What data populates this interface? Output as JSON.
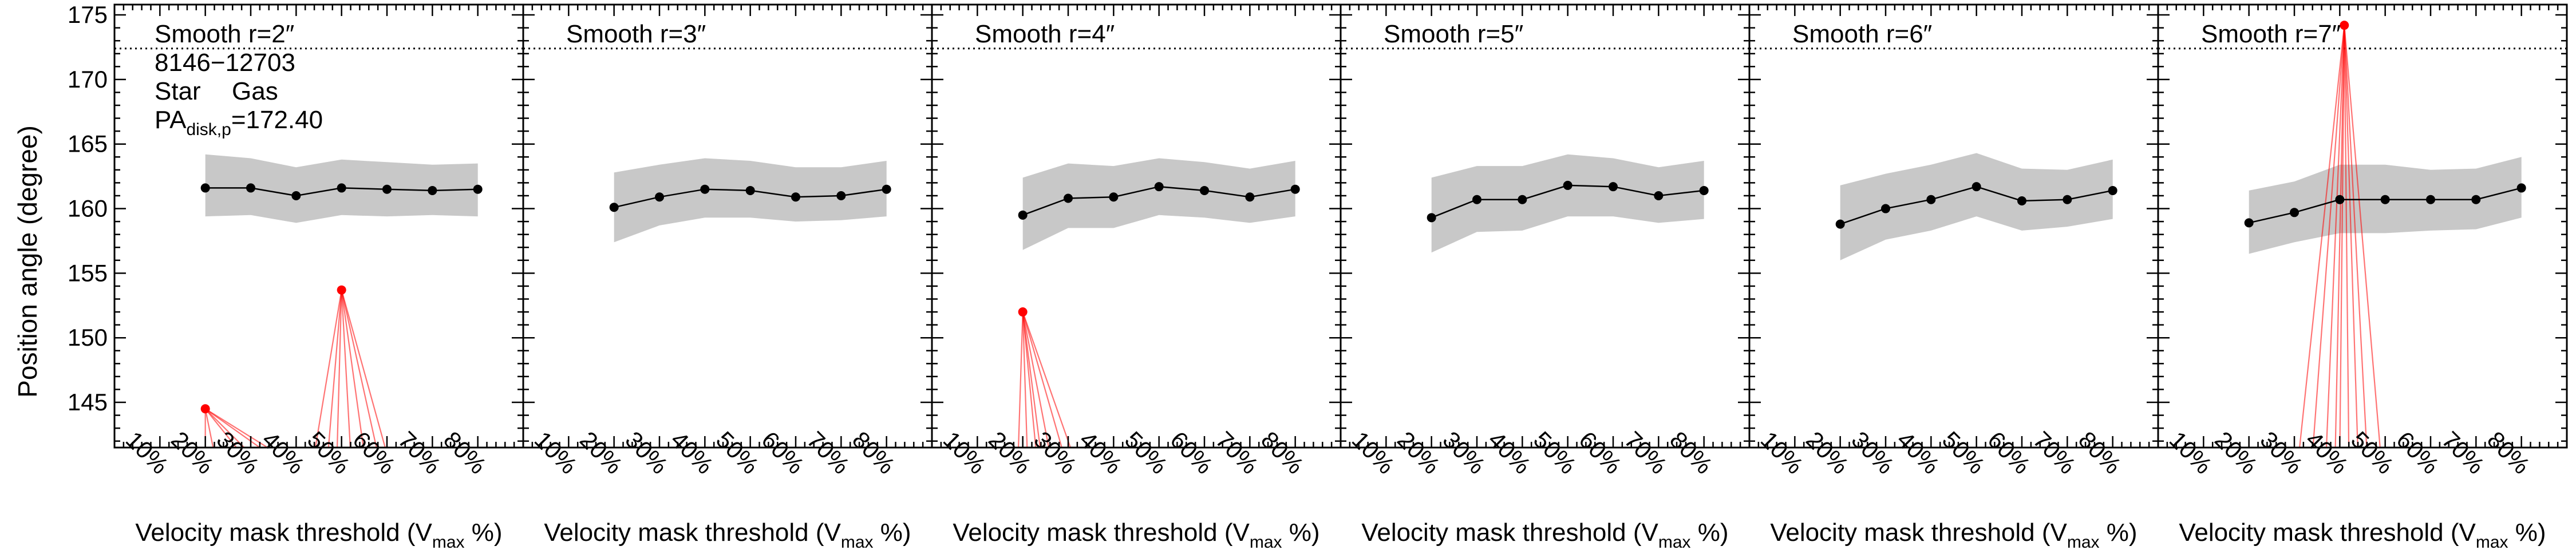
{
  "figure": {
    "ylabel": "Position angle (degree)",
    "xlabel_main": "Velocity mask threshold (V",
    "xlabel_sub": "max",
    "xlabel_tail": " %)",
    "xtick_labels": [
      "10%",
      "20%",
      "30%",
      "40%",
      "50%",
      "60%",
      "70%",
      "80%"
    ],
    "ytick_labels": [
      "145",
      "150",
      "155",
      "160",
      "165",
      "170",
      "175"
    ],
    "annotation": {
      "plate_ifu": "8146−12703",
      "star_label": "Star",
      "gas_label": "Gas",
      "pa_prefix": "PA",
      "pa_sub": "disk,p",
      "pa_value": "=172.40"
    },
    "colors": {
      "star": "#000000",
      "gas": "#ff0000",
      "band": "#c8c8c8",
      "reference_line": "#000000"
    }
  },
  "chart_data": [
    {
      "type": "line",
      "title": "Smooth r=2″",
      "x": [
        20,
        30,
        40,
        50,
        60,
        70,
        80
      ],
      "xlim": [
        0,
        90
      ],
      "ylim": [
        141.5,
        175.8
      ],
      "reference_line": 172.4,
      "series": [
        {
          "name": "Star",
          "values": [
            161.6,
            161.6,
            161.0,
            161.6,
            161.5,
            161.4,
            161.5
          ],
          "band_upper": [
            164.2,
            163.9,
            163.2,
            163.8,
            163.6,
            163.4,
            163.5
          ],
          "band_lower": [
            159.4,
            159.5,
            158.9,
            159.5,
            159.4,
            159.5,
            159.4
          ]
        },
        {
          "name": "Gas",
          "x": [
            20,
            50
          ],
          "values": [
            144.5,
            153.7
          ],
          "fan_ends": [
            [
              [
                20,
                141.0
              ],
              [
                22,
                141.0
              ],
              [
                28,
                141.0
              ],
              [
                30,
                141.0
              ],
              [
                34,
                141.0
              ],
              [
                36,
                141.0
              ]
            ],
            [
              [
                44,
                141.0
              ],
              [
                47,
                141.0
              ],
              [
                49,
                141.0
              ],
              [
                52,
                141.0
              ],
              [
                55,
                141.0
              ],
              [
                58,
                141.0
              ],
              [
                60,
                141.0
              ]
            ]
          ]
        }
      ]
    },
    {
      "type": "line",
      "title": "Smooth r=3″",
      "x": [
        20,
        30,
        40,
        50,
        60,
        70,
        80
      ],
      "xlim": [
        0,
        90
      ],
      "ylim": [
        141.5,
        175.8
      ],
      "reference_line": 172.4,
      "series": [
        {
          "name": "Star",
          "values": [
            160.1,
            160.9,
            161.5,
            161.4,
            160.9,
            161.0,
            161.5
          ],
          "band_upper": [
            162.8,
            163.4,
            163.9,
            163.7,
            163.2,
            163.2,
            163.7
          ],
          "band_lower": [
            157.4,
            158.7,
            159.3,
            159.3,
            159.0,
            159.1,
            159.4
          ]
        }
      ]
    },
    {
      "type": "line",
      "title": "Smooth r=4″",
      "x": [
        20,
        30,
        40,
        50,
        60,
        70,
        80
      ],
      "xlim": [
        0,
        90
      ],
      "ylim": [
        141.5,
        175.8
      ],
      "reference_line": 172.4,
      "series": [
        {
          "name": "Star",
          "values": [
            159.5,
            160.8,
            160.9,
            161.7,
            161.4,
            160.9,
            161.5
          ],
          "band_upper": [
            162.4,
            163.5,
            163.3,
            163.9,
            163.6,
            163.1,
            163.7
          ],
          "band_lower": [
            156.8,
            158.5,
            158.5,
            159.5,
            159.3,
            158.9,
            159.4
          ]
        },
        {
          "name": "Gas",
          "x": [
            20
          ],
          "values": [
            152.0
          ],
          "fan_ends": [
            [
              [
                19,
                141.0
              ],
              [
                21,
                141.0
              ],
              [
                23,
                141.0
              ],
              [
                24,
                141.0
              ],
              [
                26,
                141.0
              ],
              [
                29,
                141.0
              ],
              [
                31,
                141.0
              ]
            ]
          ]
        }
      ]
    },
    {
      "type": "line",
      "title": "Smooth r=5″",
      "x": [
        20,
        30,
        40,
        50,
        60,
        70,
        80
      ],
      "xlim": [
        0,
        90
      ],
      "ylim": [
        141.5,
        175.8
      ],
      "reference_line": 172.4,
      "series": [
        {
          "name": "Star",
          "values": [
            159.3,
            160.7,
            160.7,
            161.8,
            161.7,
            161.0,
            161.4
          ],
          "band_upper": [
            162.4,
            163.3,
            163.3,
            164.2,
            163.9,
            163.2,
            163.7
          ],
          "band_lower": [
            156.6,
            158.2,
            158.3,
            159.4,
            159.4,
            158.9,
            159.2
          ]
        }
      ]
    },
    {
      "type": "line",
      "title": "Smooth r=6″",
      "x": [
        20,
        30,
        40,
        50,
        60,
        70,
        80
      ],
      "xlim": [
        0,
        90
      ],
      "ylim": [
        141.5,
        175.8
      ],
      "reference_line": 172.4,
      "series": [
        {
          "name": "Star",
          "values": [
            158.8,
            160.0,
            160.7,
            161.7,
            160.6,
            160.7,
            161.4
          ],
          "band_upper": [
            161.8,
            162.7,
            163.4,
            164.3,
            163.1,
            163.0,
            163.8
          ],
          "band_lower": [
            156.0,
            157.6,
            158.3,
            159.4,
            158.3,
            158.6,
            159.2
          ]
        }
      ]
    },
    {
      "type": "line",
      "title": "Smooth r=7″",
      "x": [
        20,
        30,
        40,
        50,
        60,
        70,
        80
      ],
      "xlim": [
        0,
        90
      ],
      "ylim": [
        141.5,
        175.8
      ],
      "reference_line": 172.4,
      "series": [
        {
          "name": "Star",
          "values": [
            158.9,
            159.7,
            160.7,
            160.7,
            160.7,
            160.7,
            161.6
          ],
          "band_upper": [
            161.4,
            162.1,
            163.4,
            163.4,
            163.0,
            163.1,
            164.0
          ],
          "band_lower": [
            156.5,
            157.4,
            158.1,
            158.1,
            158.3,
            158.4,
            159.3
          ]
        },
        {
          "name": "Gas",
          "x": [
            41
          ],
          "values": [
            174.2
          ],
          "fan_ends": [
            [
              [
                31,
                141.0
              ],
              [
                34,
                141.0
              ],
              [
                37,
                141.0
              ],
              [
                39,
                141.0
              ],
              [
                40,
                141.0
              ],
              [
                42,
                141.0
              ],
              [
                44,
                141.0
              ],
              [
                46,
                141.0
              ],
              [
                49,
                141.0
              ]
            ]
          ]
        }
      ]
    }
  ]
}
